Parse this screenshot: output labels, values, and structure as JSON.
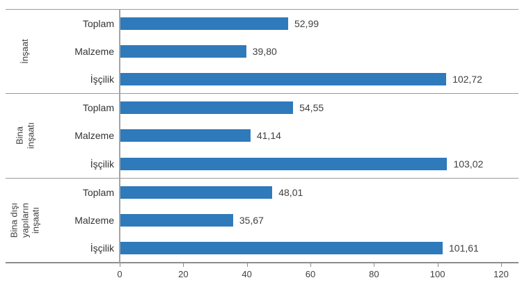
{
  "chart_data": {
    "type": "bar",
    "orientation": "horizontal",
    "title": "",
    "xlabel": "",
    "ylabel": "",
    "legend": null,
    "grid": false,
    "x_axis": {
      "min": 0,
      "max": 120,
      "ticks": [
        0,
        20,
        40,
        60,
        80,
        100,
        120
      ],
      "tick_labels": [
        "0",
        "20",
        "40",
        "60",
        "80",
        "100",
        "120"
      ]
    },
    "groups": [
      {
        "label": "İnşaat",
        "label_lines": [
          "İnşaat"
        ],
        "rows": [
          {
            "category": "Toplam",
            "value": 52.99,
            "value_label": "52,99"
          },
          {
            "category": "Malzeme",
            "value": 39.8,
            "value_label": "39,80"
          },
          {
            "category": "İşçilik",
            "value": 102.72,
            "value_label": "102,72"
          }
        ]
      },
      {
        "label": "Bina inşaatı",
        "label_lines": [
          "Bina",
          "inşaatı"
        ],
        "rows": [
          {
            "category": "Toplam",
            "value": 54.55,
            "value_label": "54,55"
          },
          {
            "category": "Malzeme",
            "value": 41.14,
            "value_label": "41,14"
          },
          {
            "category": "İşçilik",
            "value": 103.02,
            "value_label": "103,02"
          }
        ]
      },
      {
        "label": "Bina dışı yapıların inşaatı",
        "label_lines": [
          "Bina dışı",
          "yapıların",
          "inşaatı"
        ],
        "rows": [
          {
            "category": "Toplam",
            "value": 48.01,
            "value_label": "48,01"
          },
          {
            "category": "Malzeme",
            "value": 35.67,
            "value_label": "35,67"
          },
          {
            "category": "İşçilik",
            "value": 101.61,
            "value_label": "101,61"
          }
        ]
      }
    ],
    "colors": {
      "bar": "#2e7abb",
      "axis_line": "#8c8c8c",
      "separator_line": "#9a9a9a",
      "text": "#3f3f3f"
    }
  }
}
